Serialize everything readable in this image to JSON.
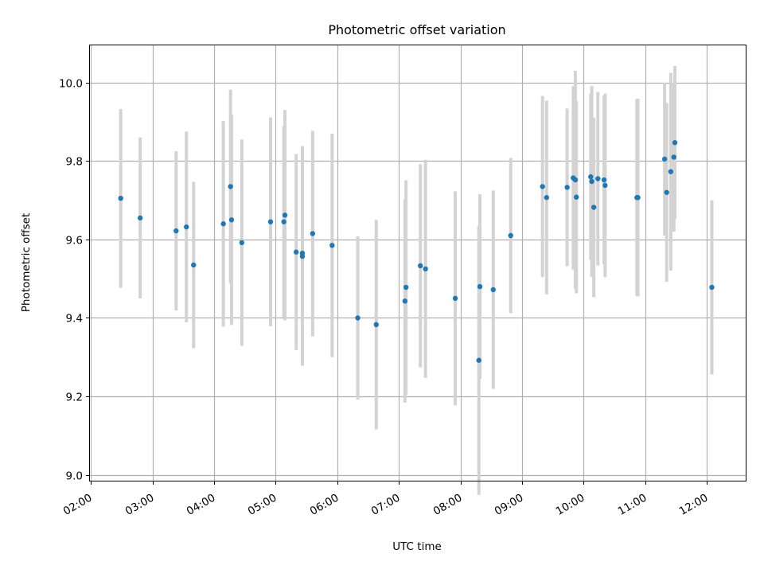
{
  "chart_data": {
    "type": "scatter",
    "title": "Photometric offset variation",
    "xlabel": "UTC time",
    "ylabel": "Photometric offset",
    "xlim": [
      "01:59",
      "12:38"
    ],
    "ylim": [
      8.985,
      10.095
    ],
    "x_ticks": [
      "02:00",
      "03:00",
      "04:00",
      "05:00",
      "06:00",
      "07:00",
      "08:00",
      "09:00",
      "10:00",
      "11:00",
      "12:00"
    ],
    "y_ticks": [
      9.0,
      9.2,
      9.4,
      9.6,
      9.8,
      10.0
    ],
    "grid": true,
    "colors": {
      "points": "#1f77b4",
      "errorbars": "#d3d3d3",
      "grid": "#b0b0b0"
    },
    "series": [
      {
        "x": [
          "02:29",
          "02:48",
          "03:23",
          "03:33",
          "03:40",
          "04:09",
          "04:16",
          "04:17",
          "04:27",
          "04:55",
          "05:08",
          "05:09",
          "05:20",
          "05:26",
          "05:26",
          "05:36",
          "05:55",
          "06:20",
          "06:38",
          "07:06",
          "07:07",
          "07:21",
          "07:26",
          "07:55",
          "08:18",
          "08:19",
          "08:32",
          "08:49",
          "09:20",
          "09:24",
          "09:44",
          "09:50",
          "09:52",
          "09:53",
          "10:07",
          "10:08",
          "10:10",
          "10:14",
          "10:20",
          "10:21",
          "10:52",
          "10:53",
          "11:19",
          "11:21",
          "11:25",
          "11:28",
          "11:29",
          "12:05"
        ],
        "y": [
          9.705,
          9.655,
          9.622,
          9.632,
          9.535,
          9.64,
          9.735,
          9.65,
          9.592,
          9.645,
          9.645,
          9.662,
          9.568,
          9.557,
          9.565,
          9.615,
          9.585,
          9.4,
          9.383,
          9.443,
          9.478,
          9.533,
          9.525,
          9.45,
          9.292,
          9.48,
          9.472,
          9.61,
          9.735,
          9.707,
          9.733,
          9.757,
          9.752,
          9.708,
          9.76,
          9.748,
          9.682,
          9.755,
          9.752,
          9.738,
          9.707,
          9.707,
          9.805,
          9.72,
          9.773,
          9.81,
          9.847,
          9.478
        ],
        "err": [
          0.228,
          0.205,
          0.203,
          0.243,
          0.212,
          0.262,
          0.247,
          0.268,
          0.263,
          0.266,
          0.244,
          0.268,
          0.25,
          0.279,
          0.273,
          0.262,
          0.285,
          0.208,
          0.267,
          0.259,
          0.273,
          0.259,
          0.278,
          0.273,
          0.343,
          0.235,
          0.253,
          0.198,
          0.231,
          0.247,
          0.201,
          0.234,
          0.278,
          0.245,
          0.212,
          0.243,
          0.229,
          0.221,
          0.215,
          0.234,
          0.251,
          0.252,
          0.195,
          0.228,
          0.252,
          0.19,
          0.195,
          0.222
        ]
      }
    ]
  }
}
